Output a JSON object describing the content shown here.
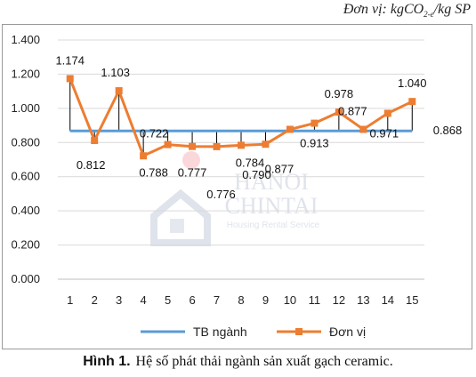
{
  "unit": {
    "prefix": "Đơn vị: kgCO",
    "sub": "2-e",
    "suffix": "/kg SP"
  },
  "caption": {
    "label": "Hình 1.",
    "text": "Hệ số phát thải ngành sản xuất gạch ceramic."
  },
  "watermark": {
    "line1": "HANOI",
    "line2": "CHINTAI",
    "line3": "Housing Rental Service"
  },
  "chart_data": {
    "type": "line",
    "x": [
      "1",
      "2",
      "3",
      "4",
      "5",
      "6",
      "7",
      "8",
      "9",
      "10",
      "11",
      "12",
      "13",
      "14",
      "15"
    ],
    "ylim": [
      0,
      1.4
    ],
    "ytick_labels": [
      "0.000",
      "0.200",
      "0.400",
      "0.600",
      "0.800",
      "1.000",
      "1.200",
      "1.400"
    ],
    "legend_position": "bottom",
    "series": [
      {
        "name": "TB ngành",
        "color": "#5b9bd5",
        "values": [
          0.868,
          0.868,
          0.868,
          0.868,
          0.868,
          0.868,
          0.868,
          0.868,
          0.868,
          0.868,
          0.868,
          0.868,
          0.868,
          0.868,
          0.868
        ],
        "label": "0.868"
      },
      {
        "name": "Đơn vị",
        "color": "#ed7d31",
        "values": [
          1.174,
          0.812,
          1.103,
          0.722,
          0.788,
          0.777,
          0.776,
          0.784,
          0.79,
          0.877,
          0.913,
          0.978,
          0.877,
          0.971,
          1.04
        ],
        "labels": [
          "1.174",
          "0.812",
          "1.103",
          "0.722",
          "0.788",
          "0.777",
          "0.776",
          "0.784",
          "0.790",
          "0.877",
          "0.913",
          "0.978",
          "0.877",
          "0.971",
          "1.040"
        ]
      }
    ]
  }
}
